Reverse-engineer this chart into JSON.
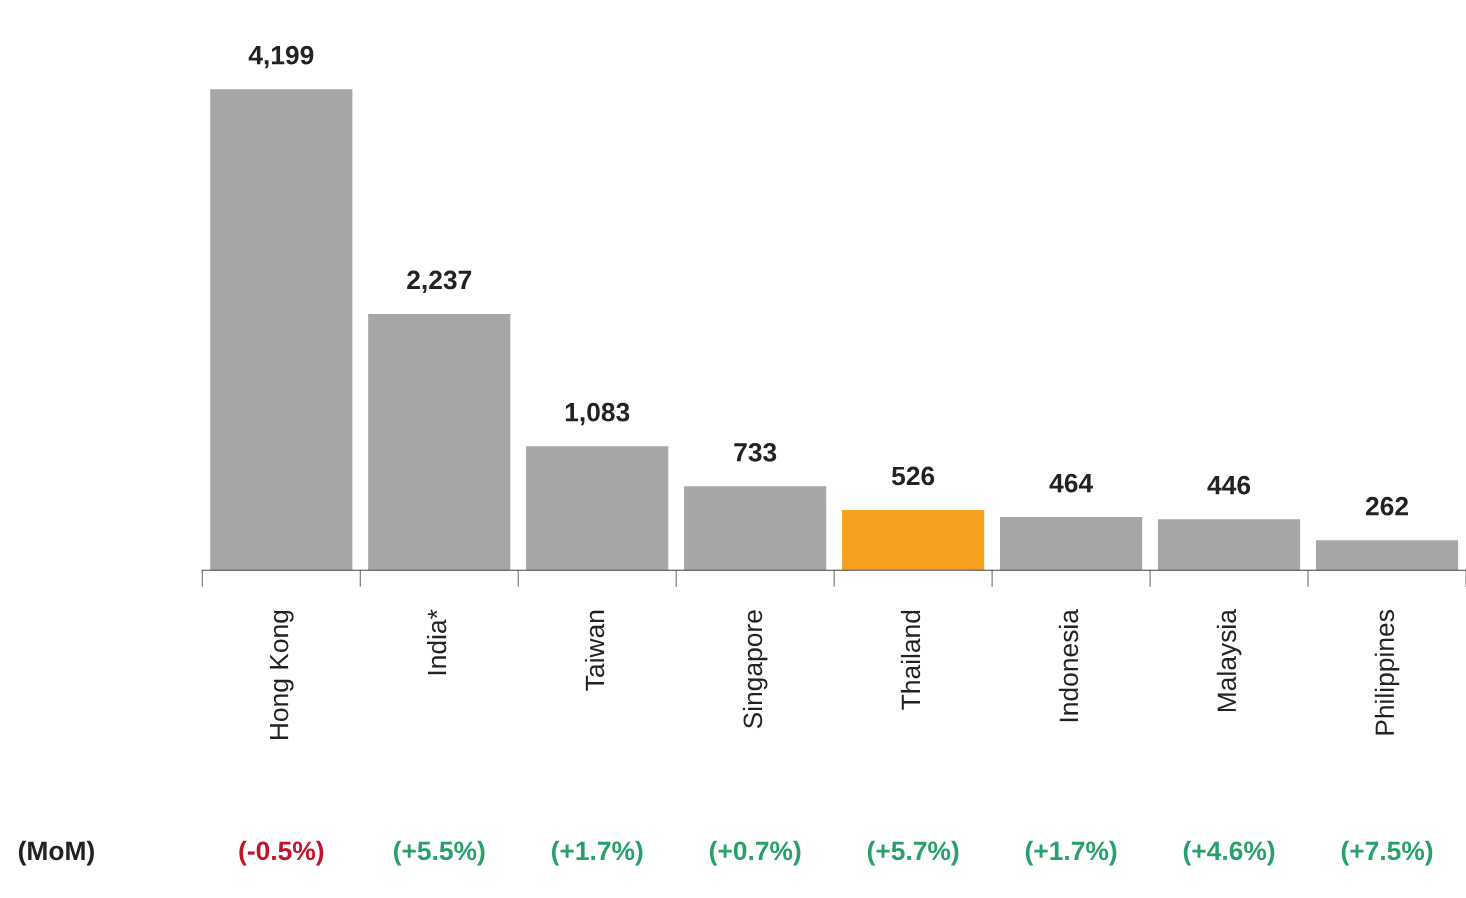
{
  "chart_data": {
    "type": "bar",
    "categories": [
      "Hong Kong",
      "India*",
      "Taiwan",
      "Singapore",
      "Thailand",
      "Indonesia",
      "Malaysia",
      "Philippines"
    ],
    "values": [
      4199,
      2237,
      1083,
      733,
      526,
      464,
      446,
      262
    ],
    "value_labels": [
      "4,199",
      "2,237",
      "1,083",
      "733",
      "526",
      "464",
      "446",
      "262"
    ],
    "colors": [
      "#a6a6a6",
      "#a6a6a6",
      "#a6a6a6",
      "#a6a6a6",
      "#f5a01e",
      "#a6a6a6",
      "#a6a6a6",
      "#a6a6a6"
    ],
    "annotations": [
      "(MoM)",
      "(-0.5%)",
      "(+5.5%)",
      "(+1.7%)",
      "(+0.7%)",
      "(+5.7%)",
      "(+1.7%)",
      "(+4.6%)",
      "(+7.5%)"
    ],
    "grid": false,
    "legend": false
  }
}
